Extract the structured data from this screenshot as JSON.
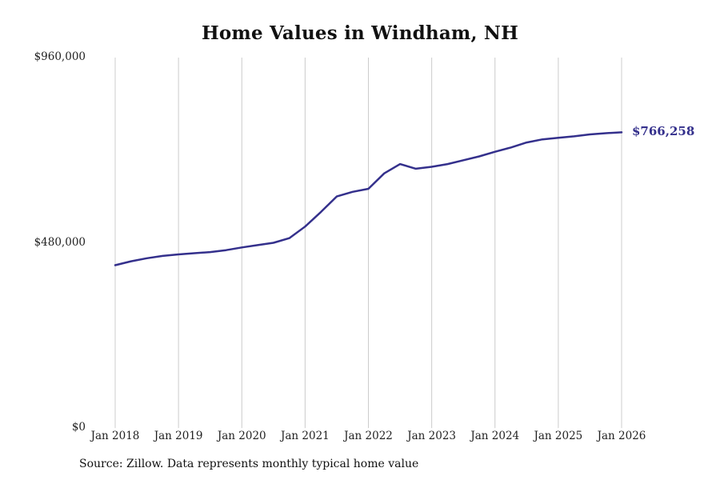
{
  "chart_data": {
    "type": "line",
    "title": "Home Values in Windham, NH",
    "months_since_jan_2018": [
      0,
      3,
      6,
      9,
      12,
      15,
      18,
      21,
      24,
      27,
      30,
      33,
      36,
      39,
      42,
      45,
      48,
      51,
      54,
      57,
      60,
      63,
      66,
      69,
      72,
      75,
      78,
      81,
      84,
      87,
      90,
      93,
      96
    ],
    "values": [
      422000,
      432000,
      440000,
      446000,
      450000,
      453000,
      456000,
      461000,
      468000,
      474000,
      480000,
      492000,
      522000,
      560000,
      600000,
      612000,
      620000,
      660000,
      684000,
      672000,
      677000,
      684000,
      694000,
      704000,
      716000,
      727000,
      740000,
      748000,
      752000,
      756000,
      761000,
      764000,
      766258
    ],
    "x_tick_labels": [
      "Jan 2018",
      "Jan 2019",
      "Jan 2020",
      "Jan 2021",
      "Jan 2022",
      "Jan 2023",
      "Jan 2024",
      "Jan 2025",
      "Jan 2026"
    ],
    "y_ticks": [
      {
        "label": "$960,000",
        "value": 960000
      },
      {
        "label": "$480,000",
        "value": 480000
      },
      {
        "label": "$0",
        "value": 0
      }
    ],
    "ylim": [
      0,
      960000
    ],
    "grid": "vertical-only",
    "legend": "none",
    "line_color": "#34308c",
    "grid_color": "#cccccc",
    "latest_value": 766258,
    "end_label": "$766,258",
    "source_note": "Source: Zillow. Data represents monthly typical home value"
  }
}
